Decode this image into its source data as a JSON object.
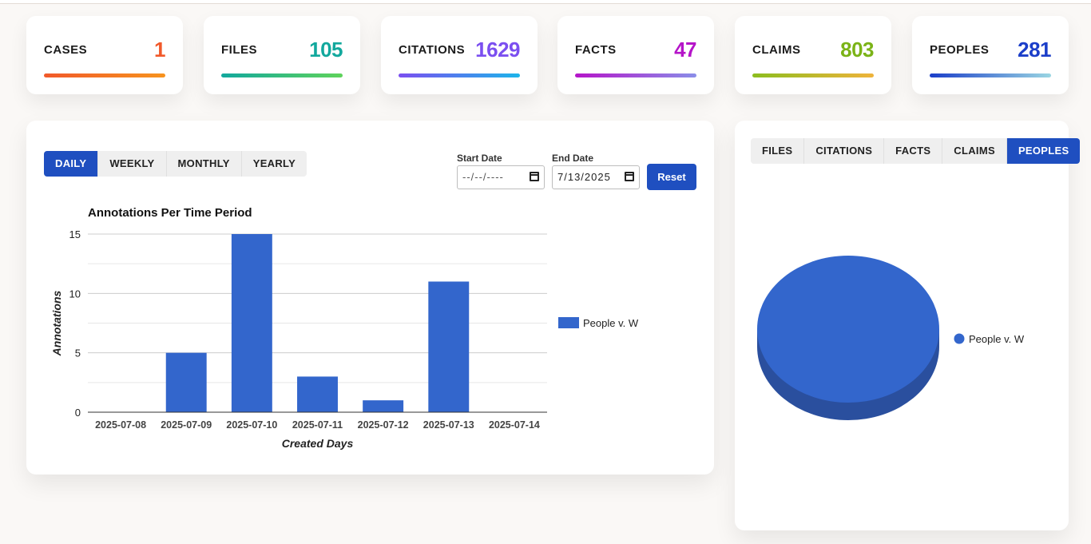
{
  "stats": [
    {
      "label": "CASES",
      "value": "1",
      "color": "#f1592a",
      "bar": [
        "#f1592a",
        "#f7931e"
      ]
    },
    {
      "label": "FILES",
      "value": "105",
      "color": "#12a89d",
      "bar": [
        "#12a89d",
        "#5fd35b"
      ]
    },
    {
      "label": "CITATIONS",
      "value": "1629",
      "color": "#7b4ff0",
      "bar": [
        "#7b4ff0",
        "#1cb5ea"
      ]
    },
    {
      "label": "FACTS",
      "value": "47",
      "color": "#b515c9",
      "bar": [
        "#b515c9",
        "#8a8ee8"
      ]
    },
    {
      "label": "CLAIMS",
      "value": "803",
      "color": "#7bb317",
      "bar": [
        "#8cbd1f",
        "#efb33b"
      ]
    },
    {
      "label": "PEOPLES",
      "value": "281",
      "color": "#1b3ec9",
      "bar": [
        "#1b3ec9",
        "#9ad6e3"
      ]
    }
  ],
  "period_tabs": [
    "DAILY",
    "WEEKLY",
    "MONTHLY",
    "YEARLY"
  ],
  "period_active": "DAILY",
  "filters": {
    "start_label": "Start Date",
    "start_value": "--/--/----",
    "end_label": "End Date",
    "end_value": "7/13/2025",
    "reset_label": "Reset"
  },
  "chart_data": [
    {
      "type": "bar",
      "title": "Annotations Per Time Period",
      "xlabel": "Created Days",
      "ylabel": "Annotations",
      "categories": [
        "2025-07-08",
        "2025-07-09",
        "2025-07-10",
        "2025-07-11",
        "2025-07-12",
        "2025-07-13",
        "2025-07-14"
      ],
      "series": [
        {
          "name": "People v. W",
          "values": [
            0,
            5,
            15,
            3,
            1,
            11,
            0
          ],
          "color": "#3366cc"
        }
      ],
      "ylim": [
        0,
        15
      ],
      "yticks": [
        0,
        5,
        10,
        15
      ],
      "grid": true,
      "legend": "right"
    },
    {
      "type": "pie",
      "style": "3d",
      "slices": [
        {
          "label": "People v. W",
          "value": 100,
          "color": "#3366cc"
        }
      ],
      "legend": "right"
    }
  ],
  "pie_tabs": [
    "FILES",
    "CITATIONS",
    "FACTS",
    "CLAIMS",
    "PEOPLES"
  ],
  "pie_active": "PEOPLES"
}
